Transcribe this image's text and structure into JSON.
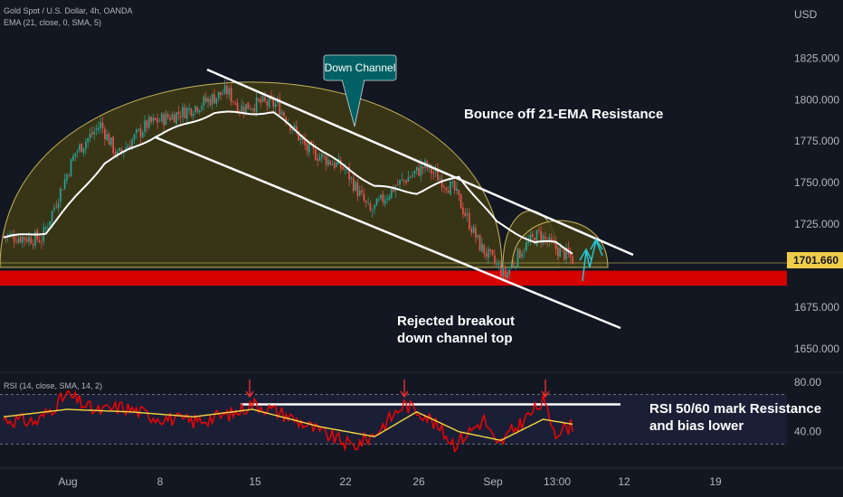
{
  "chart_data": {
    "type": "candlestick",
    "symbol_line": "Gold Spot / U.S. Dollar, 4h, OANDA",
    "indicator_line": "EMA (21, close, 0, SMA, 5)",
    "currency": "USD",
    "last_price": "1701.660",
    "y_ticks": [
      "1825.000",
      "1800.000",
      "1775.000",
      "1750.000",
      "1725.000",
      "1675.000",
      "1650.000"
    ],
    "y_tick_values": [
      1825,
      1800,
      1775,
      1750,
      1725,
      1675,
      1650
    ],
    "ylim": [
      1638,
      1860
    ],
    "x_ticks": [
      "Aug",
      "8",
      "15",
      "22",
      "26",
      "Sep",
      "13:00",
      "12",
      "19"
    ],
    "support_zone": [
      1688,
      1697
    ],
    "ema_anchors": [
      [
        0,
        1717
      ],
      [
        20,
        1720
      ],
      [
        48,
        1762
      ],
      [
        72,
        1778
      ],
      [
        100,
        1792
      ],
      [
        128,
        1792
      ],
      [
        152,
        1768
      ],
      [
        176,
        1748
      ],
      [
        196,
        1744
      ],
      [
        216,
        1754
      ],
      [
        234,
        1726
      ],
      [
        252,
        1714
      ],
      [
        262,
        1714
      ],
      [
        270,
        1708
      ]
    ],
    "price_anchors": [
      [
        0,
        1718
      ],
      [
        18,
        1716
      ],
      [
        34,
        1768
      ],
      [
        46,
        1785
      ],
      [
        54,
        1766
      ],
      [
        68,
        1785
      ],
      [
        86,
        1793
      ],
      [
        106,
        1805
      ],
      [
        112,
        1795
      ],
      [
        122,
        1798
      ],
      [
        130,
        1797
      ],
      [
        144,
        1770
      ],
      [
        162,
        1758
      ],
      [
        174,
        1732
      ],
      [
        186,
        1748
      ],
      [
        200,
        1760
      ],
      [
        214,
        1745
      ],
      [
        226,
        1712
      ],
      [
        238,
        1694
      ],
      [
        246,
        1710
      ],
      [
        254,
        1719
      ],
      [
        260,
        1712
      ],
      [
        270,
        1704
      ]
    ],
    "rsi": {
      "label": "RSI (14, close, SMA, 14, 2)",
      "ticks": [
        "80.00",
        "40.00"
      ],
      "tick_values": [
        80,
        40
      ],
      "ylim": [
        15,
        85
      ],
      "bands": [
        70,
        30
      ],
      "resistance_level": 62,
      "rsi_anchors": [
        [
          0,
          50
        ],
        [
          16,
          48
        ],
        [
          30,
          70
        ],
        [
          44,
          56
        ],
        [
          56,
          60
        ],
        [
          72,
          52
        ],
        [
          90,
          48
        ],
        [
          110,
          55
        ],
        [
          118,
          63
        ],
        [
          132,
          55
        ],
        [
          150,
          40
        ],
        [
          166,
          28
        ],
        [
          176,
          38
        ],
        [
          190,
          62
        ],
        [
          200,
          54
        ],
        [
          214,
          30
        ],
        [
          228,
          50
        ],
        [
          234,
          28
        ],
        [
          246,
          48
        ],
        [
          256,
          64
        ],
        [
          262,
          40
        ],
        [
          270,
          45
        ]
      ],
      "signal_anchors": [
        [
          0,
          52
        ],
        [
          30,
          58
        ],
        [
          60,
          56
        ],
        [
          90,
          52
        ],
        [
          118,
          58
        ],
        [
          150,
          44
        ],
        [
          176,
          36
        ],
        [
          196,
          56
        ],
        [
          216,
          40
        ],
        [
          236,
          33
        ],
        [
          256,
          50
        ],
        [
          270,
          46
        ]
      ]
    },
    "annotations": {
      "down_channel": "Down Channel",
      "bounce": "Bounce off 21-EMA Resistance",
      "rejected_1": "Rejected breakout",
      "rejected_2": "down channel top",
      "rsi_note_1": "RSI 50/60 mark Resistance",
      "rsi_note_2": "and bias lower"
    }
  },
  "colors": {
    "background": "#131722",
    "up_candle": "#26a69a",
    "down_candle": "#ef5350",
    "ema": "#ffffff",
    "arc_fill": "#3f3b15",
    "arc_stroke": "#c8b65a",
    "support": "#d50000",
    "callout": "#006064",
    "last_price_bg": "#f0cc4a",
    "rsi_line": "#ff0000",
    "rsi_signal": "#f5d742",
    "arrow_red": "#ff2d2d",
    "arrow_teal": "#26c6da"
  }
}
